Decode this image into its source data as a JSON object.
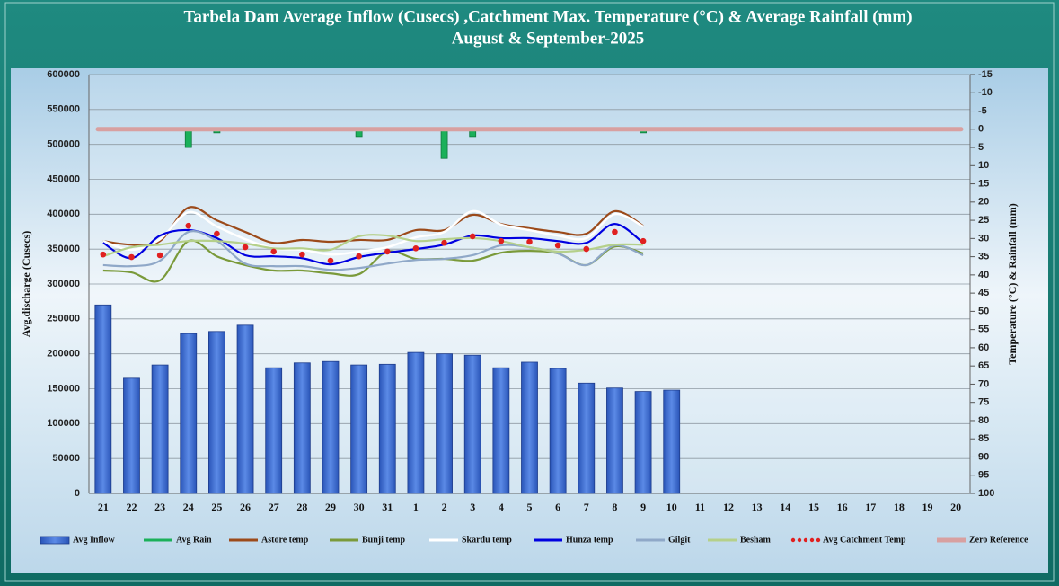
{
  "chart_data": {
    "type": "combo",
    "title": "Tarbela Dam Average Inflow (Cusecs) ,Catchment Max. Temperature (°C) & Average Rainfall (mm)",
    "subtitle": "August & September-2025",
    "y_label": "Avg.discharge (Cusecs)",
    "y2_label": "Temperature (°C) & Rainfall (mm)",
    "categories": [
      "21",
      "22",
      "23",
      "24",
      "25",
      "26",
      "27",
      "28",
      "29",
      "30",
      "31",
      "1",
      "2",
      "3",
      "4",
      "5",
      "6",
      "7",
      "8",
      "9",
      "10",
      "11",
      "12",
      "13",
      "14",
      "15",
      "16",
      "17",
      "18",
      "19",
      "20"
    ],
    "ylim": [
      0,
      600000
    ],
    "yticks": [
      0,
      50000,
      100000,
      150000,
      200000,
      250000,
      300000,
      350000,
      400000,
      450000,
      500000,
      550000,
      600000
    ],
    "y2lim": [
      100,
      -15
    ],
    "y2ticks": [
      -15,
      -10,
      -5,
      0,
      5,
      10,
      15,
      20,
      25,
      30,
      35,
      40,
      45,
      50,
      55,
      60,
      65,
      70,
      75,
      80,
      85,
      90,
      95,
      100
    ],
    "grid": true,
    "series": [
      {
        "name": "Avg Inflow",
        "type": "bar",
        "axis": "y",
        "color": "#3b6fd4",
        "values": [
          270000,
          165000,
          184000,
          229000,
          232000,
          241000,
          180000,
          187000,
          189000,
          184000,
          185000,
          202000,
          200000,
          198000,
          180000,
          188000,
          179000,
          158000,
          151000,
          146000,
          148000,
          null,
          null,
          null,
          null,
          null,
          null,
          null,
          null,
          null,
          null
        ]
      },
      {
        "name": "Avg Rain",
        "type": "bar",
        "axis": "y2",
        "color": "#1bb05a",
        "values": [
          0,
          0,
          0,
          5,
          1,
          0,
          0,
          0,
          0,
          2,
          0,
          0,
          8,
          2,
          0,
          0,
          0,
          0,
          0,
          1,
          0,
          null,
          null,
          null,
          null,
          null,
          null,
          null,
          null,
          null,
          null
        ]
      },
      {
        "name": "Astore temp",
        "type": "line",
        "axis": "y2",
        "color": "#9c4a1a",
        "values": [
          30.7,
          31.7,
          30.7,
          21.5,
          25,
          28.2,
          31.2,
          30.4,
          30.9,
          30.4,
          30.4,
          27.7,
          27.7,
          23.5,
          26,
          27.2,
          28.2,
          28.7,
          22.5,
          26.5,
          null,
          null,
          null,
          null,
          null,
          null,
          null,
          null,
          null,
          null,
          null
        ]
      },
      {
        "name": "Bunji temp",
        "type": "line",
        "axis": "y2",
        "color": "#7a9a3a",
        "values": [
          38.8,
          39.3,
          41.5,
          30.7,
          34.9,
          37.3,
          38.8,
          38.8,
          39.6,
          39.8,
          33.6,
          35.6,
          35.6,
          36.1,
          33.9,
          33.4,
          34.1,
          37.3,
          32.2,
          34.1,
          null,
          null,
          null,
          null,
          null,
          null,
          null,
          null,
          null,
          null,
          null
        ]
      },
      {
        "name": "Skardu temp",
        "type": "line",
        "axis": "y2",
        "color": "#ffffff",
        "values": [
          30.7,
          33.1,
          30.2,
          22.8,
          26.7,
          30.2,
          32.7,
          33.1,
          34.4,
          33.6,
          32.4,
          29.7,
          28.2,
          22.5,
          26.2,
          27.7,
          29.2,
          29.9,
          23.3,
          26.7,
          null,
          null,
          null,
          null,
          null,
          null,
          null,
          null,
          null,
          null,
          null
        ]
      },
      {
        "name": "Hunza temp",
        "type": "line",
        "axis": "y2",
        "color": "#0000e0",
        "values": [
          31.2,
          35.4,
          29.2,
          27.7,
          29.9,
          34.6,
          34.9,
          35.4,
          37.1,
          35.1,
          33.9,
          32.9,
          31.7,
          29.2,
          29.9,
          29.9,
          30.7,
          31.2,
          26,
          31.2,
          null,
          null,
          null,
          null,
          null,
          null,
          null,
          null,
          null,
          null,
          null
        ]
      },
      {
        "name": "Gilgit",
        "type": "line",
        "axis": "y2",
        "color": "#8fa8c8",
        "values": [
          37.3,
          37.6,
          36.1,
          28.2,
          30.7,
          36.9,
          37.6,
          37.6,
          38.6,
          38.1,
          36.9,
          35.9,
          35.6,
          34.6,
          31.9,
          32.4,
          34.1,
          37.3,
          31.9,
          34.6,
          null,
          null,
          null,
          null,
          null,
          null,
          null,
          null,
          null,
          null,
          null
        ]
      },
      {
        "name": "Besham",
        "type": "line",
        "axis": "y2",
        "color": "#b5d08a",
        "values": [
          34.9,
          32.4,
          31.7,
          30.7,
          30.7,
          31.4,
          32.7,
          32.7,
          33.1,
          29.4,
          29.2,
          30.7,
          30.2,
          29.9,
          30.7,
          32.4,
          33.6,
          33.1,
          31.7,
          31.7,
          null,
          null,
          null,
          null,
          null,
          null,
          null,
          null,
          null,
          null,
          null
        ]
      },
      {
        "name": "Avg Catchment Temp",
        "type": "dots",
        "axis": "y2",
        "color": "#e02020",
        "values": [
          34.4,
          35.1,
          34.6,
          26.5,
          28.7,
          32.4,
          33.6,
          34.4,
          36.1,
          34.9,
          33.6,
          32.7,
          31.2,
          29.4,
          30.7,
          30.9,
          31.9,
          32.9,
          28.2,
          30.7,
          null,
          null,
          null,
          null,
          null,
          null,
          null,
          null,
          null,
          null,
          null
        ]
      },
      {
        "name": "Zero Reference",
        "type": "ref",
        "axis": "y2",
        "color": "#d8a0a0",
        "values": [
          0,
          0,
          0,
          0,
          0,
          0,
          0,
          0,
          0,
          0,
          0,
          0,
          0,
          0,
          0,
          0,
          0,
          0,
          0,
          0,
          0,
          0,
          0,
          0,
          0,
          0,
          0,
          0,
          0,
          0,
          0
        ]
      }
    ]
  }
}
